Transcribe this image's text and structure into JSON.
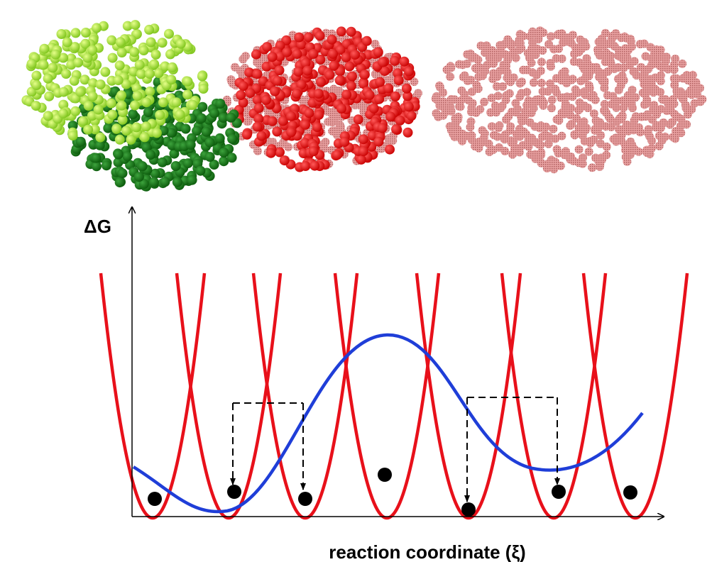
{
  "axes": {
    "y_label": "ΔG",
    "x_label": "reaction coordinate (ξ)"
  }
}
